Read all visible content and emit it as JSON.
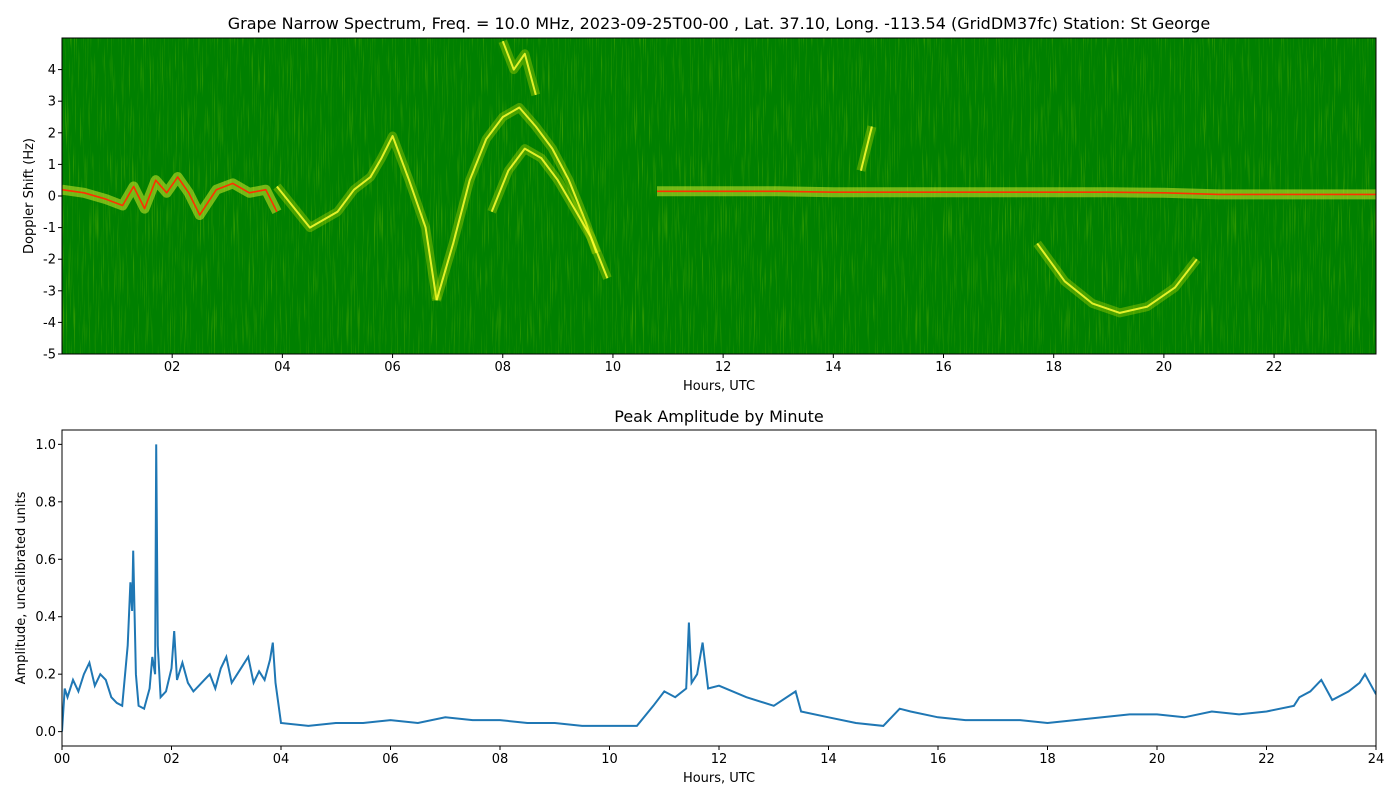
{
  "chart_data": [
    {
      "type": "heatmap",
      "title": "Grape Narrow Spectrum, Freq. = 10.0 MHz, 2023-09-25T00-00 , Lat.  37.10, Long. -113.54 (GridDM37fc) Station: St George",
      "xlabel": "Hours, UTC",
      "ylabel": "Doppler Shift (Hz)",
      "xlim": [
        0,
        23.85
      ],
      "ylim": [
        -5,
        5
      ],
      "x_ticks": [
        "02",
        "04",
        "06",
        "08",
        "10",
        "12",
        "14",
        "16",
        "18",
        "20",
        "22"
      ],
      "x_tick_values": [
        2,
        4,
        6,
        8,
        10,
        12,
        14,
        16,
        18,
        20,
        22
      ],
      "y_ticks": [
        "-5",
        "-4",
        "-3",
        "-2",
        "-1",
        "0",
        "1",
        "2",
        "3",
        "4"
      ],
      "y_tick_values": [
        -5,
        -4,
        -3,
        -2,
        -1,
        0,
        1,
        2,
        3,
        4
      ],
      "colors": {
        "background": "#008000",
        "mid": "#c8e000",
        "high": "#ffff30",
        "peak": "#ff3000"
      },
      "peak_trace": {
        "x": [
          0,
          0.4,
          0.8,
          1.1,
          1.3,
          1.5,
          1.7,
          1.9,
          2.1,
          2.3,
          2.5,
          2.8,
          3.1,
          3.4,
          3.7,
          3.9,
          10.8,
          12,
          13,
          14,
          15,
          16,
          17,
          18,
          19,
          20,
          21,
          22,
          23,
          23.85
        ],
        "y": [
          0.2,
          0.1,
          -0.1,
          -0.3,
          0.3,
          -0.4,
          0.5,
          0.1,
          0.6,
          0.1,
          -0.6,
          0.2,
          0.4,
          0.1,
          0.2,
          -0.5,
          0.15,
          0.15,
          0.15,
          0.12,
          0.12,
          0.12,
          0.12,
          0.12,
          0.12,
          0.1,
          0.05,
          0.05,
          0.05,
          0.05
        ]
      },
      "features": [
        {
          "x": [
            3.9,
            4.5,
            5,
            5.3,
            5.6,
            5.8,
            6.0,
            6.3,
            6.6,
            6.8
          ],
          "y": [
            0.3,
            -1.0,
            -0.5,
            0.2,
            0.6,
            1.2,
            1.9,
            0.5,
            -1.0,
            -3.3
          ]
        },
        {
          "x": [
            6.8,
            7.1,
            7.4,
            7.7,
            8.0,
            8.3,
            8.6,
            8.9,
            9.2,
            9.5,
            9.7
          ],
          "y": [
            -3.3,
            -1.5,
            0.5,
            1.8,
            2.5,
            2.8,
            2.2,
            1.5,
            0.5,
            -0.8,
            -1.8
          ]
        },
        {
          "x": [
            7.8,
            8.1,
            8.4,
            8.7,
            9.0,
            9.3,
            9.6,
            9.9
          ],
          "y": [
            -0.5,
            0.8,
            1.5,
            1.2,
            0.5,
            -0.4,
            -1.3,
            -2.6
          ]
        },
        {
          "x": [
            8.0,
            8.2,
            8.4,
            8.6
          ],
          "y": [
            4.9,
            4.0,
            4.5,
            3.2
          ]
        },
        {
          "x": [
            17.7,
            18.2,
            18.7,
            19.2,
            19.7,
            20.2,
            20.6
          ],
          "y": [
            -1.5,
            -2.7,
            -3.4,
            -3.7,
            -3.5,
            -2.9,
            -2.0
          ]
        },
        {
          "x": [
            14.5,
            14.6,
            14.7
          ],
          "y": [
            0.8,
            1.5,
            2.2
          ]
        }
      ]
    },
    {
      "type": "line",
      "title": "Peak Amplitude by Minute",
      "xlabel": "Hours, UTC",
      "ylabel": "Amplitude, uncalibrated units",
      "xlim": [
        0,
        24
      ],
      "ylim": [
        -0.05,
        1.05
      ],
      "x_ticks": [
        "00",
        "02",
        "04",
        "06",
        "08",
        "10",
        "12",
        "14",
        "16",
        "18",
        "20",
        "22",
        "24"
      ],
      "x_tick_values": [
        0,
        2,
        4,
        6,
        8,
        10,
        12,
        14,
        16,
        18,
        20,
        22,
        24
      ],
      "y_ticks": [
        "0.0",
        "0.2",
        "0.4",
        "0.6",
        "0.8",
        "1.0"
      ],
      "y_tick_values": [
        0,
        0.2,
        0.4,
        0.6,
        0.8,
        1.0
      ],
      "line_color": "#1f77b4",
      "x": [
        0,
        0.05,
        0.1,
        0.2,
        0.3,
        0.4,
        0.5,
        0.6,
        0.7,
        0.8,
        0.9,
        1.0,
        1.1,
        1.2,
        1.25,
        1.28,
        1.3,
        1.35,
        1.4,
        1.5,
        1.6,
        1.65,
        1.7,
        1.72,
        1.75,
        1.8,
        1.9,
        2.0,
        2.05,
        2.1,
        2.2,
        2.3,
        2.4,
        2.5,
        2.6,
        2.7,
        2.8,
        2.9,
        3.0,
        3.1,
        3.2,
        3.3,
        3.4,
        3.5,
        3.6,
        3.7,
        3.8,
        3.85,
        3.9,
        4.0,
        4.5,
        5.0,
        5.5,
        6.0,
        6.5,
        7.0,
        7.5,
        8.0,
        8.5,
        9.0,
        9.5,
        10.0,
        10.5,
        10.8,
        11.0,
        11.2,
        11.4,
        11.45,
        11.5,
        11.6,
        11.7,
        11.8,
        12.0,
        12.5,
        13.0,
        13.4,
        13.5,
        14.0,
        14.5,
        15.0,
        15.3,
        15.5,
        16.0,
        16.5,
        17.0,
        17.5,
        18.0,
        18.5,
        19.0,
        19.5,
        20.0,
        20.5,
        21.0,
        21.5,
        22.0,
        22.5,
        22.6,
        22.8,
        23.0,
        23.2,
        23.5,
        23.7,
        23.8,
        24.0
      ],
      "y": [
        0.0,
        0.15,
        0.12,
        0.18,
        0.14,
        0.2,
        0.24,
        0.16,
        0.2,
        0.18,
        0.12,
        0.1,
        0.09,
        0.3,
        0.52,
        0.42,
        0.63,
        0.2,
        0.09,
        0.08,
        0.15,
        0.26,
        0.2,
        1.0,
        0.3,
        0.12,
        0.14,
        0.22,
        0.35,
        0.18,
        0.24,
        0.17,
        0.14,
        0.16,
        0.18,
        0.2,
        0.15,
        0.22,
        0.26,
        0.17,
        0.2,
        0.23,
        0.26,
        0.17,
        0.21,
        0.18,
        0.25,
        0.31,
        0.17,
        0.03,
        0.02,
        0.03,
        0.03,
        0.04,
        0.03,
        0.05,
        0.04,
        0.04,
        0.03,
        0.03,
        0.02,
        0.02,
        0.02,
        0.09,
        0.14,
        0.12,
        0.15,
        0.38,
        0.17,
        0.2,
        0.31,
        0.15,
        0.16,
        0.12,
        0.09,
        0.14,
        0.07,
        0.05,
        0.03,
        0.02,
        0.08,
        0.07,
        0.05,
        0.04,
        0.04,
        0.04,
        0.03,
        0.04,
        0.05,
        0.06,
        0.06,
        0.05,
        0.07,
        0.06,
        0.07,
        0.09,
        0.12,
        0.14,
        0.18,
        0.11,
        0.14,
        0.17,
        0.2,
        0.13
      ]
    }
  ]
}
